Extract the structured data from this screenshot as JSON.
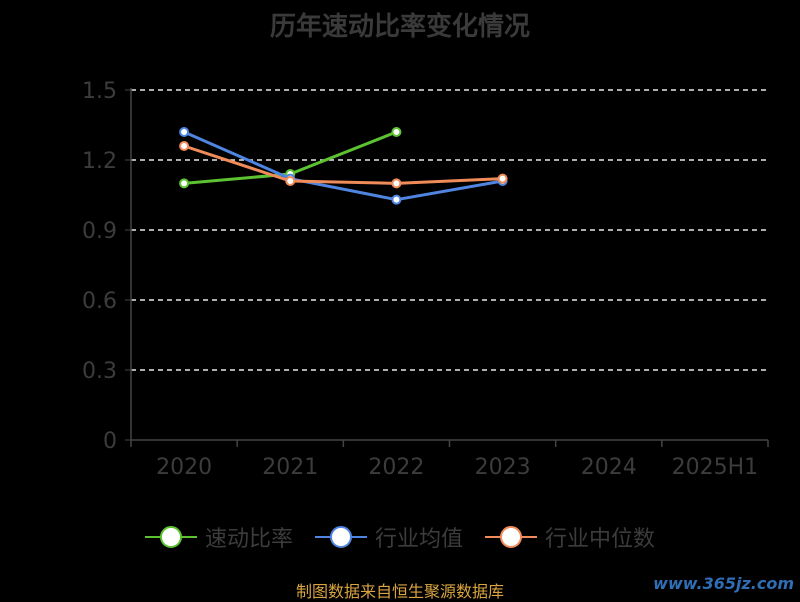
{
  "title": "历年速动比率变化情况",
  "footer": {
    "source": "制图数据来自恒生聚源数据库",
    "watermark": "www.365jz.com"
  },
  "chart_data": {
    "type": "line",
    "title": "历年速动比率变化情况",
    "categories": [
      "2020",
      "2021",
      "2022",
      "2023",
      "2024",
      "2025H1"
    ],
    "ylim": [
      0,
      1.5
    ],
    "yticks": [
      "0",
      "0.3",
      "0.6",
      "0.9",
      "1.2",
      "1.5"
    ],
    "grid": true,
    "legend_position": "bottom",
    "series": [
      {
        "name": "速动比率",
        "color": "#5cc232",
        "values": [
          1.1,
          1.14,
          1.32,
          null,
          null,
          null
        ]
      },
      {
        "name": "行业均值",
        "color": "#4f85e0",
        "values": [
          1.32,
          1.12,
          1.03,
          1.11,
          null,
          null
        ]
      },
      {
        "name": "行业中位数",
        "color": "#f08b5a",
        "values": [
          1.26,
          1.11,
          1.1,
          1.12,
          null,
          null
        ]
      }
    ]
  }
}
